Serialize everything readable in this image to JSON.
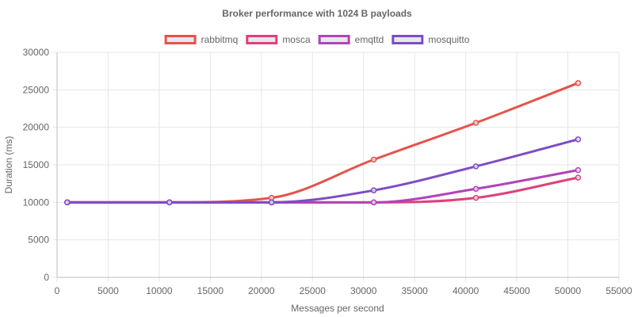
{
  "chart_data": {
    "type": "line",
    "title": "Broker performance with 1024 B payloads",
    "xlabel": "Messages per second",
    "ylabel": "Duration (ms)",
    "xlim": [
      0,
      55000
    ],
    "ylim": [
      0,
      30000
    ],
    "x_ticks": [
      "0",
      "5000",
      "10000",
      "15000",
      "20000",
      "25000",
      "30000",
      "35000",
      "40000",
      "45000",
      "50000",
      "55000"
    ],
    "y_ticks": [
      "0",
      "5000",
      "10000",
      "15000",
      "20000",
      "25000",
      "30000"
    ],
    "grid": true,
    "legend_position": "top",
    "x": [
      1000,
      11000,
      21000,
      31000,
      41000,
      51000
    ],
    "series": [
      {
        "name": "rabbitmq",
        "color": "#e5534b",
        "values": [
          10000,
          10000,
          10600,
          15700,
          20600,
          25900
        ]
      },
      {
        "name": "mosca",
        "color": "#e0407a",
        "values": [
          10000,
          10000,
          10000,
          10000,
          10600,
          13300
        ]
      },
      {
        "name": "emqttd",
        "color": "#b044b8",
        "values": [
          10000,
          10000,
          10000,
          10000,
          11800,
          14300
        ]
      },
      {
        "name": "mosquitto",
        "color": "#7e4cc4",
        "values": [
          10000,
          10000,
          10000,
          11600,
          14800,
          18400
        ]
      }
    ]
  }
}
